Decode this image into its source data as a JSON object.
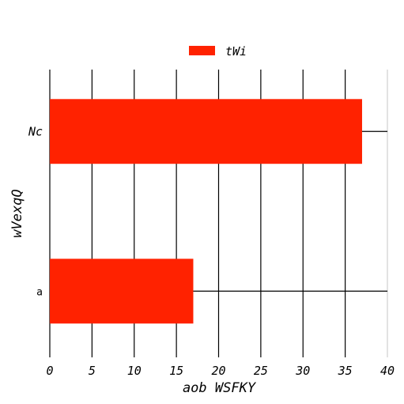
{
  "chart_data": {
    "type": "bar",
    "orientation": "horizontal",
    "categories": [
      "Nc",
      "a"
    ],
    "series": [
      {
        "name": "tWi",
        "values": [
          37,
          17
        ],
        "color": "#ff2200"
      }
    ],
    "xlabel": "aob WSFKY",
    "ylabel": "wVexqQ",
    "xlim": [
      0,
      40
    ],
    "xticks": [
      "0",
      "5",
      "10",
      "15",
      "20",
      "25",
      "30",
      "35",
      "40"
    ],
    "grid": "vertical",
    "legend": "top-center"
  }
}
